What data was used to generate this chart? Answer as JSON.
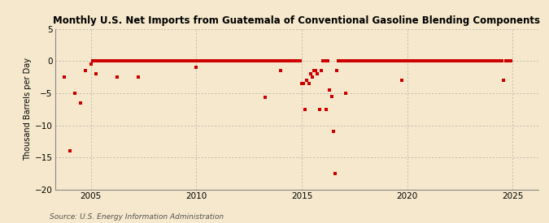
{
  "title": "Monthly U.S. Net Imports from Guatemala of Conventional Gasoline Blending Components",
  "ylabel": "Thousand Barrels per Day",
  "source": "Source: U.S. Energy Information Administration",
  "background_color": "#f5e8cc",
  "plot_bg_color": "#f5e8cc",
  "marker_color": "#cc0000",
  "ylim": [
    -20,
    5
  ],
  "yticks": [
    -20,
    -15,
    -10,
    -5,
    0,
    5
  ],
  "xlim_start": 2003.3,
  "xlim_end": 2026.2,
  "xticks": [
    2005,
    2010,
    2015,
    2020,
    2025
  ],
  "data_points": [
    [
      2003.75,
      -2.5
    ],
    [
      2004.0,
      -14.0
    ],
    [
      2004.25,
      -5.0
    ],
    [
      2004.5,
      -6.5
    ],
    [
      2004.75,
      -1.5
    ],
    [
      2005.0,
      -0.5
    ],
    [
      2005.08,
      0.0
    ],
    [
      2005.17,
      0.0
    ],
    [
      2005.25,
      -2.0
    ],
    [
      2005.33,
      0.0
    ],
    [
      2005.42,
      0.0
    ],
    [
      2005.5,
      0.0
    ],
    [
      2005.58,
      0.0
    ],
    [
      2005.67,
      0.0
    ],
    [
      2005.75,
      0.0
    ],
    [
      2005.83,
      0.0
    ],
    [
      2005.92,
      0.0
    ],
    [
      2006.0,
      0.0
    ],
    [
      2006.08,
      0.0
    ],
    [
      2006.17,
      0.0
    ],
    [
      2006.25,
      -2.5
    ],
    [
      2006.33,
      0.0
    ],
    [
      2006.42,
      0.0
    ],
    [
      2006.5,
      0.0
    ],
    [
      2006.58,
      0.0
    ],
    [
      2006.67,
      0.0
    ],
    [
      2006.75,
      0.0
    ],
    [
      2006.83,
      0.0
    ],
    [
      2006.92,
      0.0
    ],
    [
      2007.0,
      0.0
    ],
    [
      2007.08,
      0.0
    ],
    [
      2007.17,
      0.0
    ],
    [
      2007.25,
      -2.5
    ],
    [
      2007.33,
      0.0
    ],
    [
      2007.42,
      0.0
    ],
    [
      2007.5,
      0.0
    ],
    [
      2007.58,
      0.0
    ],
    [
      2007.67,
      0.0
    ],
    [
      2007.75,
      0.0
    ],
    [
      2007.83,
      0.0
    ],
    [
      2007.92,
      0.0
    ],
    [
      2008.0,
      0.0
    ],
    [
      2008.08,
      0.0
    ],
    [
      2008.17,
      0.0
    ],
    [
      2008.25,
      0.0
    ],
    [
      2008.33,
      0.0
    ],
    [
      2008.42,
      0.0
    ],
    [
      2008.5,
      0.0
    ],
    [
      2008.58,
      0.0
    ],
    [
      2008.67,
      0.0
    ],
    [
      2008.75,
      0.0
    ],
    [
      2008.83,
      0.0
    ],
    [
      2008.92,
      0.0
    ],
    [
      2009.0,
      0.0
    ],
    [
      2009.08,
      0.0
    ],
    [
      2009.17,
      0.0
    ],
    [
      2009.25,
      0.0
    ],
    [
      2009.33,
      0.0
    ],
    [
      2009.42,
      0.0
    ],
    [
      2009.5,
      0.0
    ],
    [
      2009.58,
      0.0
    ],
    [
      2009.67,
      0.0
    ],
    [
      2009.75,
      0.0
    ],
    [
      2009.83,
      0.0
    ],
    [
      2009.92,
      0.0
    ],
    [
      2010.0,
      -1.0
    ],
    [
      2010.08,
      0.0
    ],
    [
      2010.17,
      0.0
    ],
    [
      2010.25,
      0.0
    ],
    [
      2010.33,
      0.0
    ],
    [
      2010.42,
      0.0
    ],
    [
      2010.5,
      0.0
    ],
    [
      2010.58,
      0.0
    ],
    [
      2010.67,
      0.0
    ],
    [
      2010.75,
      0.0
    ],
    [
      2010.83,
      0.0
    ],
    [
      2010.92,
      0.0
    ],
    [
      2011.0,
      0.0
    ],
    [
      2011.08,
      0.0
    ],
    [
      2011.17,
      0.0
    ],
    [
      2011.25,
      0.0
    ],
    [
      2011.33,
      0.0
    ],
    [
      2011.42,
      0.0
    ],
    [
      2011.5,
      0.0
    ],
    [
      2011.58,
      0.0
    ],
    [
      2011.67,
      0.0
    ],
    [
      2011.75,
      0.0
    ],
    [
      2011.83,
      0.0
    ],
    [
      2011.92,
      0.0
    ],
    [
      2012.0,
      0.0
    ],
    [
      2012.08,
      0.0
    ],
    [
      2012.17,
      0.0
    ],
    [
      2012.25,
      0.0
    ],
    [
      2012.33,
      0.0
    ],
    [
      2012.42,
      0.0
    ],
    [
      2012.5,
      0.0
    ],
    [
      2012.58,
      0.0
    ],
    [
      2012.67,
      0.0
    ],
    [
      2012.75,
      0.0
    ],
    [
      2012.83,
      0.0
    ],
    [
      2012.92,
      0.0
    ],
    [
      2013.0,
      0.0
    ],
    [
      2013.08,
      0.0
    ],
    [
      2013.17,
      0.0
    ],
    [
      2013.25,
      -5.6
    ],
    [
      2013.33,
      0.0
    ],
    [
      2013.42,
      0.0
    ],
    [
      2013.5,
      0.0
    ],
    [
      2013.58,
      0.0
    ],
    [
      2013.67,
      0.0
    ],
    [
      2013.75,
      0.0
    ],
    [
      2013.83,
      0.0
    ],
    [
      2013.92,
      0.0
    ],
    [
      2014.0,
      -1.5
    ],
    [
      2014.08,
      0.0
    ],
    [
      2014.17,
      0.0
    ],
    [
      2014.25,
      0.0
    ],
    [
      2014.33,
      0.0
    ],
    [
      2014.42,
      0.0
    ],
    [
      2014.5,
      0.0
    ],
    [
      2014.58,
      0.0
    ],
    [
      2014.67,
      0.0
    ],
    [
      2014.75,
      0.0
    ],
    [
      2014.83,
      0.0
    ],
    [
      2014.92,
      0.0
    ],
    [
      2015.0,
      -3.5
    ],
    [
      2015.08,
      -3.5
    ],
    [
      2015.17,
      -7.5
    ],
    [
      2015.25,
      -3.0
    ],
    [
      2015.33,
      -3.5
    ],
    [
      2015.42,
      -2.0
    ],
    [
      2015.5,
      -2.5
    ],
    [
      2015.58,
      -1.5
    ],
    [
      2015.67,
      -1.5
    ],
    [
      2015.75,
      -2.0
    ],
    [
      2015.83,
      -7.5
    ],
    [
      2015.92,
      -1.5
    ],
    [
      2016.0,
      0.0
    ],
    [
      2016.08,
      0.0
    ],
    [
      2016.17,
      -7.5
    ],
    [
      2016.25,
      0.0
    ],
    [
      2016.33,
      -4.5
    ],
    [
      2016.42,
      -5.5
    ],
    [
      2016.5,
      -11.0
    ],
    [
      2016.58,
      -17.5
    ],
    [
      2016.67,
      -1.5
    ],
    [
      2016.75,
      0.0
    ],
    [
      2016.83,
      0.0
    ],
    [
      2016.92,
      0.0
    ],
    [
      2017.0,
      0.0
    ],
    [
      2017.08,
      -5.0
    ],
    [
      2017.17,
      0.0
    ],
    [
      2017.25,
      0.0
    ],
    [
      2017.33,
      0.0
    ],
    [
      2017.42,
      0.0
    ],
    [
      2017.5,
      0.0
    ],
    [
      2017.58,
      0.0
    ],
    [
      2017.67,
      0.0
    ],
    [
      2017.75,
      0.0
    ],
    [
      2017.83,
      0.0
    ],
    [
      2017.92,
      0.0
    ],
    [
      2018.0,
      0.0
    ],
    [
      2018.08,
      0.0
    ],
    [
      2018.17,
      0.0
    ],
    [
      2018.25,
      0.0
    ],
    [
      2018.33,
      0.0
    ],
    [
      2018.42,
      0.0
    ],
    [
      2018.5,
      0.0
    ],
    [
      2018.58,
      0.0
    ],
    [
      2018.67,
      0.0
    ],
    [
      2018.75,
      0.0
    ],
    [
      2018.83,
      0.0
    ],
    [
      2018.92,
      0.0
    ],
    [
      2019.0,
      0.0
    ],
    [
      2019.08,
      0.0
    ],
    [
      2019.17,
      0.0
    ],
    [
      2019.25,
      0.0
    ],
    [
      2019.33,
      0.0
    ],
    [
      2019.42,
      0.0
    ],
    [
      2019.5,
      0.0
    ],
    [
      2019.58,
      0.0
    ],
    [
      2019.67,
      0.0
    ],
    [
      2019.75,
      -3.0
    ],
    [
      2019.83,
      0.0
    ],
    [
      2019.92,
      0.0
    ],
    [
      2020.0,
      0.0
    ],
    [
      2020.08,
      0.0
    ],
    [
      2020.17,
      0.0
    ],
    [
      2020.25,
      0.0
    ],
    [
      2020.33,
      0.0
    ],
    [
      2020.42,
      0.0
    ],
    [
      2020.5,
      0.0
    ],
    [
      2020.58,
      0.0
    ],
    [
      2020.67,
      0.0
    ],
    [
      2020.75,
      0.0
    ],
    [
      2020.83,
      0.0
    ],
    [
      2020.92,
      0.0
    ],
    [
      2021.0,
      0.0
    ],
    [
      2021.08,
      0.0
    ],
    [
      2021.17,
      0.0
    ],
    [
      2021.25,
      0.0
    ],
    [
      2021.33,
      0.0
    ],
    [
      2021.42,
      0.0
    ],
    [
      2021.5,
      0.0
    ],
    [
      2021.58,
      0.0
    ],
    [
      2021.67,
      0.0
    ],
    [
      2021.75,
      0.0
    ],
    [
      2021.83,
      0.0
    ],
    [
      2021.92,
      0.0
    ],
    [
      2022.0,
      0.0
    ],
    [
      2022.08,
      0.0
    ],
    [
      2022.17,
      0.0
    ],
    [
      2022.25,
      0.0
    ],
    [
      2022.33,
      0.0
    ],
    [
      2022.42,
      0.0
    ],
    [
      2022.5,
      0.0
    ],
    [
      2022.58,
      0.0
    ],
    [
      2022.67,
      0.0
    ],
    [
      2022.75,
      0.0
    ],
    [
      2022.83,
      0.0
    ],
    [
      2022.92,
      0.0
    ],
    [
      2023.0,
      0.0
    ],
    [
      2023.08,
      0.0
    ],
    [
      2023.17,
      0.0
    ],
    [
      2023.25,
      0.0
    ],
    [
      2023.33,
      0.0
    ],
    [
      2023.42,
      0.0
    ],
    [
      2023.5,
      0.0
    ],
    [
      2023.58,
      0.0
    ],
    [
      2023.67,
      0.0
    ],
    [
      2023.75,
      0.0
    ],
    [
      2023.83,
      0.0
    ],
    [
      2023.92,
      0.0
    ],
    [
      2024.0,
      0.0
    ],
    [
      2024.08,
      0.0
    ],
    [
      2024.17,
      0.0
    ],
    [
      2024.25,
      0.0
    ],
    [
      2024.33,
      0.0
    ],
    [
      2024.42,
      0.0
    ],
    [
      2024.5,
      0.0
    ],
    [
      2024.58,
      -3.0
    ],
    [
      2024.67,
      0.0
    ],
    [
      2024.75,
      0.0
    ],
    [
      2024.83,
      0.0
    ],
    [
      2024.92,
      0.0
    ]
  ]
}
